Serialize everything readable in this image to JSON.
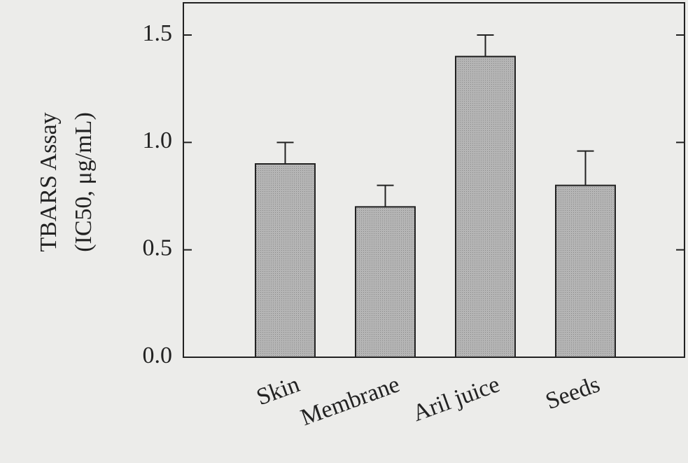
{
  "chart_data": {
    "type": "bar",
    "ylabel": [
      "TBARS Assay",
      "(IC50, μg/mL)"
    ],
    "categories": [
      "Skin",
      "Membrane",
      "Aril juice",
      "Seeds"
    ],
    "values": [
      0.9,
      0.7,
      1.4,
      0.8
    ],
    "errors": [
      0.1,
      0.1,
      0.1,
      0.16
    ],
    "color": "#a9a9a9",
    "ylim": [
      0,
      1.65
    ],
    "yticks": [
      {
        "value": 0,
        "label": "0.0"
      },
      {
        "value": 0.5,
        "label": "0.5"
      },
      {
        "value": 1,
        "label": "1.0"
      },
      {
        "value": 1.5,
        "label": "1.5"
      }
    ]
  }
}
